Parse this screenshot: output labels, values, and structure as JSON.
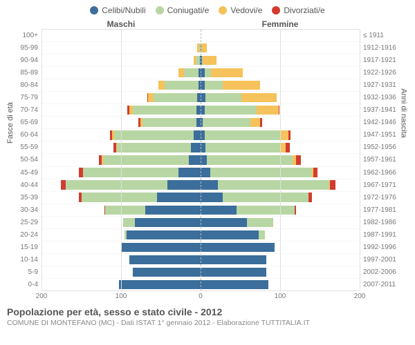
{
  "legend": {
    "items": [
      {
        "key": "celibi",
        "label": "Celibi/Nubili",
        "color": "#3b6e9b"
      },
      {
        "key": "coniugati",
        "label": "Coniugati/e",
        "color": "#b8d6a4"
      },
      {
        "key": "vedovi",
        "label": "Vedovi/e",
        "color": "#f6c25b"
      },
      {
        "key": "divorziati",
        "label": "Divorziati/e",
        "color": "#d23c2e"
      }
    ]
  },
  "headers": {
    "maschi": "Maschi",
    "femmine": "Femmine"
  },
  "axis": {
    "y_left_title": "Fasce di età",
    "y_right_title": "Anni di nascita",
    "age_labels": [
      "100+",
      "95-99",
      "90-94",
      "85-89",
      "80-84",
      "75-79",
      "70-74",
      "65-69",
      "60-64",
      "55-59",
      "50-54",
      "45-49",
      "40-44",
      "35-39",
      "30-34",
      "25-29",
      "20-24",
      "15-19",
      "10-14",
      "5-9",
      "0-4"
    ],
    "year_labels": [
      "≤ 1911",
      "1912-1916",
      "1917-1921",
      "1922-1926",
      "1927-1931",
      "1932-1936",
      "1937-1941",
      "1942-1946",
      "1947-1951",
      "1952-1956",
      "1957-1961",
      "1962-1966",
      "1967-1971",
      "1972-1976",
      "1977-1981",
      "1982-1986",
      "1987-1991",
      "1992-1996",
      "1997-2001",
      "2002-2006",
      "2007-2011"
    ],
    "x_ticks": [
      200,
      100,
      0,
      100,
      200
    ],
    "x_max": 200
  },
  "colors": {
    "celibi": "#3b6e9b",
    "coniugati": "#b8d6a4",
    "vedovi": "#f6c25b",
    "divorziati": "#d23c2e",
    "grid": "#e0e0e0",
    "center": "#bbbbbb",
    "background": "#ffffff"
  },
  "title": {
    "main": "Popolazione per età, sesso e stato civile - 2012",
    "sub": "COMUNE DI MONTEFANO (MC) - Dati ISTAT 1° gennaio 2012 - Elaborazione TUTTITALIA.IT"
  },
  "data": {
    "rows": [
      {
        "age": "100+",
        "m": {
          "celibi": 0,
          "coniugati": 0,
          "vedovi": 0,
          "divorziati": 0
        },
        "f": {
          "celibi": 0,
          "coniugati": 0,
          "vedovi": 0,
          "divorziati": 0
        }
      },
      {
        "age": "95-99",
        "m": {
          "celibi": 0,
          "coniugati": 2,
          "vedovi": 2,
          "divorziati": 0
        },
        "f": {
          "celibi": 1,
          "coniugati": 0,
          "vedovi": 7,
          "divorziati": 0
        }
      },
      {
        "age": "90-94",
        "m": {
          "celibi": 1,
          "coniugati": 5,
          "vedovi": 3,
          "divorziati": 0
        },
        "f": {
          "celibi": 2,
          "coniugati": 1,
          "vedovi": 17,
          "divorziati": 0
        }
      },
      {
        "age": "85-89",
        "m": {
          "celibi": 3,
          "coniugati": 18,
          "vedovi": 7,
          "divorziati": 0
        },
        "f": {
          "celibi": 5,
          "coniugati": 8,
          "vedovi": 40,
          "divorziati": 0
        }
      },
      {
        "age": "80-84",
        "m": {
          "celibi": 3,
          "coniugati": 42,
          "vedovi": 8,
          "divorziati": 0
        },
        "f": {
          "celibi": 5,
          "coniugati": 23,
          "vedovi": 47,
          "divorziati": 0
        }
      },
      {
        "age": "75-79",
        "m": {
          "celibi": 4,
          "coniugati": 55,
          "vedovi": 7,
          "divorziati": 1
        },
        "f": {
          "celibi": 6,
          "coniugati": 45,
          "vedovi": 45,
          "divorziati": 0
        }
      },
      {
        "age": "70-74",
        "m": {
          "celibi": 5,
          "coniugati": 80,
          "vedovi": 5,
          "divorziati": 2
        },
        "f": {
          "celibi": 5,
          "coniugati": 65,
          "vedovi": 28,
          "divorziati": 1
        }
      },
      {
        "age": "65-69",
        "m": {
          "celibi": 5,
          "coniugati": 68,
          "vedovi": 3,
          "divorziati": 2
        },
        "f": {
          "celibi": 3,
          "coniugati": 60,
          "vedovi": 12,
          "divorziati": 2
        }
      },
      {
        "age": "60-64",
        "m": {
          "celibi": 9,
          "coniugati": 100,
          "vedovi": 2,
          "divorziati": 3
        },
        "f": {
          "celibi": 5,
          "coniugati": 95,
          "vedovi": 10,
          "divorziati": 3
        }
      },
      {
        "age": "55-59",
        "m": {
          "celibi": 12,
          "coniugati": 93,
          "vedovi": 1,
          "divorziati": 4
        },
        "f": {
          "celibi": 6,
          "coniugati": 95,
          "vedovi": 6,
          "divorziati": 5
        }
      },
      {
        "age": "50-54",
        "m": {
          "celibi": 15,
          "coniugati": 108,
          "vedovi": 1,
          "divorziati": 4
        },
        "f": {
          "celibi": 8,
          "coniugati": 108,
          "vedovi": 4,
          "divorziati": 6
        }
      },
      {
        "age": "45-49",
        "m": {
          "celibi": 28,
          "coniugati": 120,
          "vedovi": 0,
          "divorziati": 5
        },
        "f": {
          "celibi": 12,
          "coniugati": 128,
          "vedovi": 2,
          "divorziati": 5
        }
      },
      {
        "age": "40-44",
        "m": {
          "celibi": 42,
          "coniugati": 128,
          "vedovi": 0,
          "divorziati": 6
        },
        "f": {
          "celibi": 22,
          "coniugati": 140,
          "vedovi": 1,
          "divorziati": 7
        }
      },
      {
        "age": "35-39",
        "m": {
          "celibi": 55,
          "coniugati": 95,
          "vedovi": 0,
          "divorziati": 3
        },
        "f": {
          "celibi": 28,
          "coniugati": 108,
          "vedovi": 0,
          "divorziati": 4
        }
      },
      {
        "age": "30-34",
        "m": {
          "celibi": 70,
          "coniugati": 50,
          "vedovi": 0,
          "divorziati": 1
        },
        "f": {
          "celibi": 45,
          "coniugati": 73,
          "vedovi": 0,
          "divorziati": 2
        }
      },
      {
        "age": "25-29",
        "m": {
          "celibi": 83,
          "coniugati": 14,
          "vedovi": 0,
          "divorziati": 0
        },
        "f": {
          "celibi": 58,
          "coniugati": 33,
          "vedovi": 0,
          "divorziati": 0
        }
      },
      {
        "age": "20-24",
        "m": {
          "celibi": 93,
          "coniugati": 3,
          "vedovi": 0,
          "divorziati": 0
        },
        "f": {
          "celibi": 73,
          "coniugati": 8,
          "vedovi": 0,
          "divorziati": 0
        }
      },
      {
        "age": "15-19",
        "m": {
          "celibi": 100,
          "coniugati": 0,
          "vedovi": 0,
          "divorziati": 0
        },
        "f": {
          "celibi": 93,
          "coniugati": 0,
          "vedovi": 0,
          "divorziati": 0
        }
      },
      {
        "age": "10-14",
        "m": {
          "celibi": 90,
          "coniugati": 0,
          "vedovi": 0,
          "divorziati": 0
        },
        "f": {
          "celibi": 83,
          "coniugati": 0,
          "vedovi": 0,
          "divorziati": 0
        }
      },
      {
        "age": "5-9",
        "m": {
          "celibi": 85,
          "coniugati": 0,
          "vedovi": 0,
          "divorziati": 0
        },
        "f": {
          "celibi": 83,
          "coniugati": 0,
          "vedovi": 0,
          "divorziati": 0
        }
      },
      {
        "age": "0-4",
        "m": {
          "celibi": 103,
          "coniugati": 0,
          "vedovi": 0,
          "divorziati": 0
        },
        "f": {
          "celibi": 85,
          "coniugati": 0,
          "vedovi": 0,
          "divorziati": 0
        }
      }
    ]
  }
}
